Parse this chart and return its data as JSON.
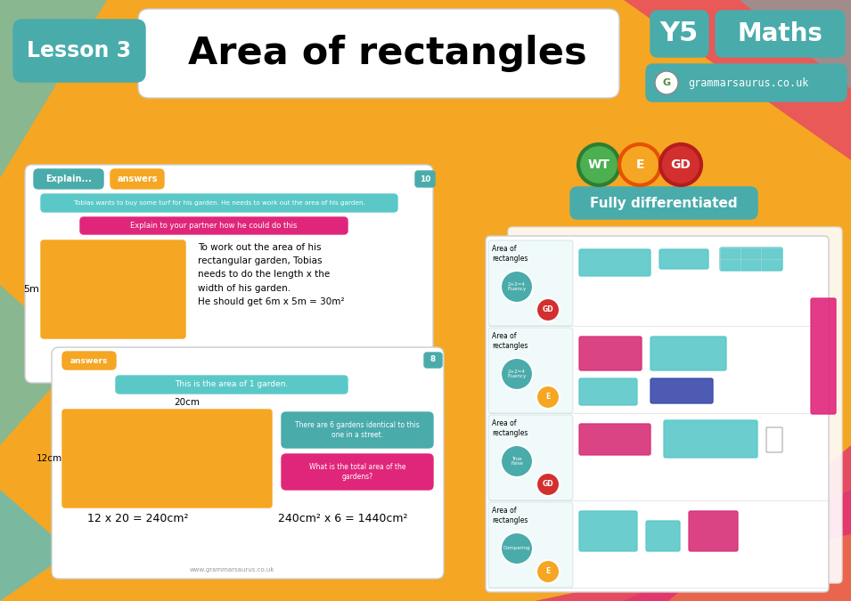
{
  "bg_color": "#F5A623",
  "title_text": "Area of rectangles",
  "lesson_label": "Lesson 3",
  "y5_label": "Y5",
  "maths_label": "Maths",
  "website": "grammarsaurus.co.uk",
  "teal_color": "#4AABAB",
  "pink_color": "#E0267A",
  "white_color": "#FFFFFF",
  "orange_rect": "#F5A623",
  "slide1_bar1": "Tobias wants to buy some turf for his garden. He needs to work out the area of his garden.",
  "slide1_bar2": "Explain to your partner how he could do this",
  "slide1_body": "To work out the area of his\nrectangular garden, Tobias\nneeds to do the length x the\nwidth of his garden.\nHe should get 6m x 5m = 30m²",
  "slide2_teal_bar": "This is the area of 1 garden.",
  "slide2_body1": "There are 6 gardens identical to this\none in a street.",
  "slide2_body2": "What is the total area of the\ngardens?",
  "slide2_calc1": "12 x 20 = 240cm²",
  "slide2_calc2": "240cm² x 6 = 1440cm²",
  "fully_diff": "Fully differentiated",
  "wt_color": "#4CAF50",
  "e_color": "#F5A623",
  "gd_color": "#D32F2F",
  "wt_border": "#2E7D32",
  "e_border": "#E65100",
  "gd_border": "#B71C1C"
}
